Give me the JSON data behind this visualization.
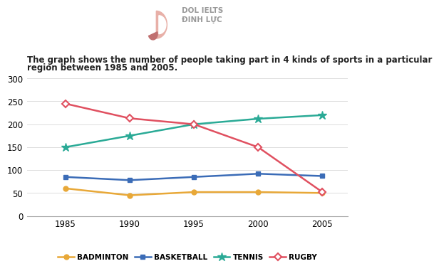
{
  "years": [
    1985,
    1990,
    1995,
    2000,
    2005
  ],
  "badminton": [
    60,
    45,
    52,
    52,
    50
  ],
  "basketball": [
    85,
    78,
    85,
    92,
    87
  ],
  "tennis": [
    150,
    175,
    200,
    212,
    220
  ],
  "rugby": [
    245,
    213,
    200,
    150,
    52
  ],
  "badminton_color": "#e8a838",
  "basketball_color": "#3b6cb7",
  "tennis_color": "#2aaa96",
  "rugby_color": "#e05060",
  "title_line1": "The graph shows the number of people taking part in 4 kinds of sports in a particular",
  "title_line2": "region between 1985 and 2005.",
  "ylim": [
    0,
    310
  ],
  "yticks": [
    0,
    50,
    100,
    150,
    200,
    250,
    300
  ],
  "xticks": [
    1985,
    1990,
    1995,
    2000,
    2005
  ],
  "legend_labels": [
    "BADMINTON",
    "BASKETBALL",
    "TENNIS",
    "RUGBY"
  ],
  "background_color": "#ffffff",
  "title_fontsize": 8.5,
  "tick_fontsize": 8.5,
  "legend_fontsize": 7.5,
  "linewidth": 1.8,
  "logo_text": "DOL IELTS\nĐINH LỰC",
  "logo_color": "#c0a0a0",
  "logo_text_color": "#999999"
}
